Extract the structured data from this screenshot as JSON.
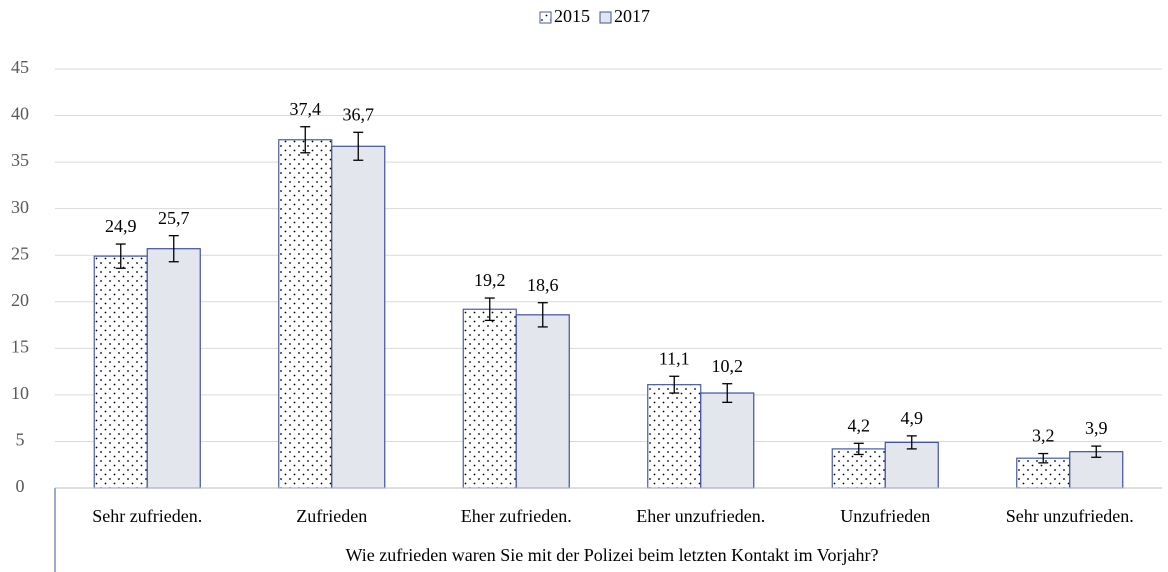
{
  "chart_data": {
    "type": "bar",
    "categories": [
      "Sehr zufrieden.",
      "Zufrieden",
      "Eher zufrieden.",
      "Eher unzufrieden.",
      "Unzufrieden",
      "Sehr unzufrieden."
    ],
    "series": [
      {
        "name": "2015",
        "color": "#ffffff",
        "pattern": "dots",
        "edge": "#4a5aa8",
        "values": [
          24.9,
          37.4,
          19.2,
          11.1,
          4.2,
          3.2
        ],
        "value_labels": [
          "24,9",
          "37,4",
          "19,2",
          "11,1",
          "4,2",
          "3,2"
        ],
        "errors": [
          1.3,
          1.4,
          1.2,
          0.9,
          0.6,
          0.5
        ]
      },
      {
        "name": "2017",
        "color": "#e3e6ec",
        "pattern": "solid",
        "edge": "#3f51a3",
        "values": [
          25.7,
          36.7,
          18.6,
          10.2,
          4.9,
          3.9
        ],
        "value_labels": [
          "25,7",
          "36,7",
          "18,6",
          "10,2",
          "4,9",
          "3,9"
        ],
        "errors": [
          1.4,
          1.5,
          1.3,
          1.0,
          0.7,
          0.6
        ]
      }
    ],
    "x_label": "Wie zufrieden waren Sie mit der Polizei beim letzten Kontakt im Vorjahr?",
    "ylim": [
      0,
      45
    ],
    "yticks": [
      0,
      5,
      10,
      15,
      20,
      25,
      30,
      35,
      40,
      45
    ],
    "grid": true,
    "legend": "top"
  }
}
